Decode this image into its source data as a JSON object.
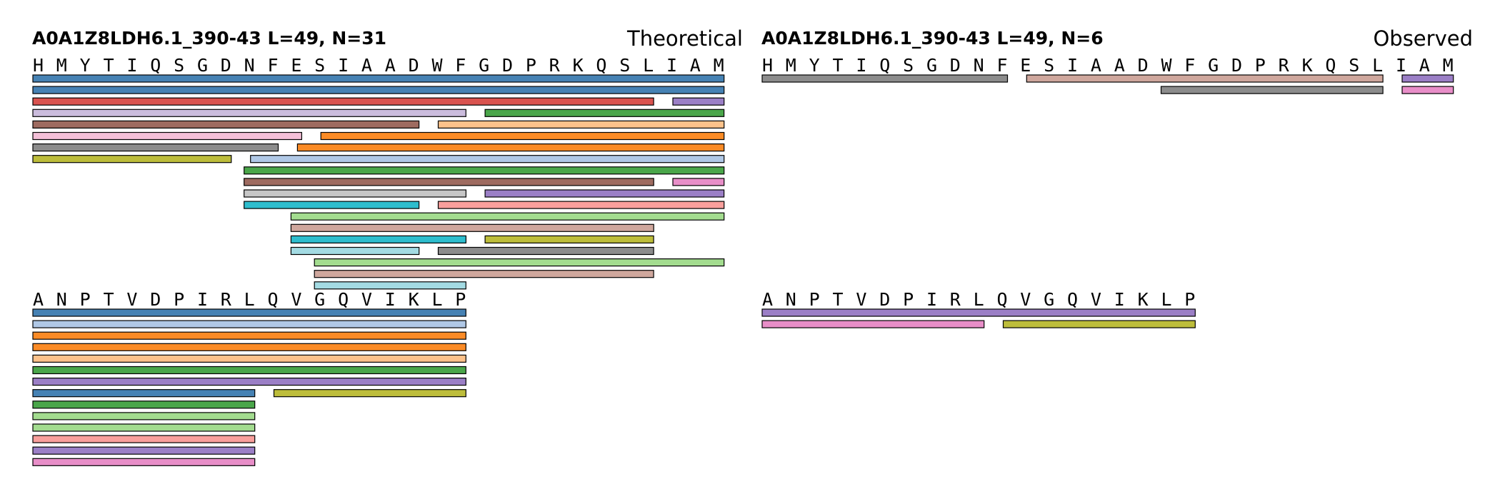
{
  "colors": {
    "blue": "#4682b4",
    "red": "#d9534f",
    "purple": "#9b7fc6",
    "lavender": "#cbbcdd",
    "green": "#4aa64a",
    "brown": "#9e6b60",
    "peach": "#fdc28b",
    "pink_light": "#f4c0d8",
    "orange": "#fb8b26",
    "gray": "#8c8c8c",
    "olive": "#bdbd3b",
    "light_blue": "#b0c8e6",
    "pink": "#e88ec8",
    "silver": "#c7c7c7",
    "cyan": "#2ebdcd",
    "salmon": "#f99f9c",
    "light_green": "#a3dc8f",
    "tan": "#cfa79d",
    "pale_cyan": "#a3dbe3"
  },
  "panels": [
    {
      "title": "A0A1Z8LDH6.1_390-43  L=49, N=31",
      "mode": "Theoretical",
      "blocks": [
        {
          "sequence": [
            "H",
            "M",
            "Y",
            "T",
            "I",
            "Q",
            "S",
            "G",
            "D",
            "N",
            "F",
            "E",
            "S",
            "I",
            "A",
            "A",
            "D",
            "W",
            "F",
            "G",
            "D",
            "P",
            "R",
            "K",
            "Q",
            "S",
            "L",
            "I",
            "A",
            "M"
          ],
          "peptides": [
            {
              "start": 0,
              "end": 29,
              "row": 0,
              "color": "blue"
            },
            {
              "start": 0,
              "end": 29,
              "row": 1,
              "color": "blue"
            },
            {
              "start": 0,
              "end": 26,
              "row": 2,
              "color": "red"
            },
            {
              "start": 27,
              "end": 29,
              "row": 2,
              "color": "purple"
            },
            {
              "start": 0,
              "end": 18,
              "row": 3,
              "color": "lavender"
            },
            {
              "start": 19,
              "end": 29,
              "row": 3,
              "color": "green"
            },
            {
              "start": 0,
              "end": 16,
              "row": 4,
              "color": "brown"
            },
            {
              "start": 17,
              "end": 29,
              "row": 4,
              "color": "peach"
            },
            {
              "start": 0,
              "end": 11,
              "row": 5,
              "color": "pink_light"
            },
            {
              "start": 12,
              "end": 29,
              "row": 5,
              "color": "orange"
            },
            {
              "start": 0,
              "end": 10,
              "row": 6,
              "color": "gray"
            },
            {
              "start": 11,
              "end": 29,
              "row": 6,
              "color": "orange"
            },
            {
              "start": 0,
              "end": 8,
              "row": 7,
              "color": "olive"
            },
            {
              "start": 9,
              "end": 29,
              "row": 7,
              "color": "light_blue"
            },
            {
              "start": 9,
              "end": 29,
              "row": 8,
              "color": "green"
            },
            {
              "start": 9,
              "end": 26,
              "row": 9,
              "color": "brown"
            },
            {
              "start": 27,
              "end": 29,
              "row": 9,
              "color": "pink"
            },
            {
              "start": 9,
              "end": 18,
              "row": 10,
              "color": "silver"
            },
            {
              "start": 19,
              "end": 29,
              "row": 10,
              "color": "purple"
            },
            {
              "start": 9,
              "end": 16,
              "row": 11,
              "color": "cyan"
            },
            {
              "start": 17,
              "end": 29,
              "row": 11,
              "color": "salmon"
            },
            {
              "start": 11,
              "end": 29,
              "row": 12,
              "color": "light_green"
            },
            {
              "start": 11,
              "end": 26,
              "row": 13,
              "color": "tan"
            },
            {
              "start": 11,
              "end": 18,
              "row": 14,
              "color": "cyan"
            },
            {
              "start": 19,
              "end": 26,
              "row": 14,
              "color": "olive"
            },
            {
              "start": 11,
              "end": 16,
              "row": 15,
              "color": "pale_cyan"
            },
            {
              "start": 17,
              "end": 26,
              "row": 15,
              "color": "gray"
            },
            {
              "start": 12,
              "end": 29,
              "row": 16,
              "color": "light_green"
            },
            {
              "start": 12,
              "end": 26,
              "row": 17,
              "color": "tan"
            },
            {
              "start": 12,
              "end": 18,
              "row": 18,
              "color": "pale_cyan"
            }
          ]
        },
        {
          "sequence": [
            "A",
            "N",
            "P",
            "T",
            "V",
            "D",
            "P",
            "I",
            "R",
            "L",
            "Q",
            "V",
            "G",
            "Q",
            "V",
            "I",
            "K",
            "L",
            "P"
          ],
          "peptides": [
            {
              "start": 0,
              "end": 18,
              "row": 0,
              "color": "blue"
            },
            {
              "start": 0,
              "end": 18,
              "row": 1,
              "color": "light_blue"
            },
            {
              "start": 0,
              "end": 18,
              "row": 2,
              "color": "orange"
            },
            {
              "start": 0,
              "end": 18,
              "row": 3,
              "color": "orange"
            },
            {
              "start": 0,
              "end": 18,
              "row": 4,
              "color": "peach"
            },
            {
              "start": 0,
              "end": 18,
              "row": 5,
              "color": "green"
            },
            {
              "start": 0,
              "end": 18,
              "row": 6,
              "color": "purple"
            },
            {
              "start": 0,
              "end": 9,
              "row": 7,
              "color": "blue"
            },
            {
              "start": 10,
              "end": 18,
              "row": 7,
              "color": "olive"
            },
            {
              "start": 0,
              "end": 9,
              "row": 8,
              "color": "green"
            },
            {
              "start": 0,
              "end": 9,
              "row": 9,
              "color": "light_green"
            },
            {
              "start": 0,
              "end": 9,
              "row": 10,
              "color": "light_green"
            },
            {
              "start": 0,
              "end": 9,
              "row": 11,
              "color": "salmon"
            },
            {
              "start": 0,
              "end": 9,
              "row": 12,
              "color": "purple"
            },
            {
              "start": 0,
              "end": 9,
              "row": 13,
              "color": "pink"
            }
          ]
        }
      ]
    },
    {
      "title": "A0A1Z8LDH6.1_390-43  L=49, N=6",
      "mode": "Observed",
      "blocks": [
        {
          "sequence": [
            "H",
            "M",
            "Y",
            "T",
            "I",
            "Q",
            "S",
            "G",
            "D",
            "N",
            "F",
            "E",
            "S",
            "I",
            "A",
            "A",
            "D",
            "W",
            "F",
            "G",
            "D",
            "P",
            "R",
            "K",
            "Q",
            "S",
            "L",
            "I",
            "A",
            "M"
          ],
          "peptides": [
            {
              "start": 0,
              "end": 10,
              "row": 0,
              "color": "gray"
            },
            {
              "start": 11,
              "end": 26,
              "row": 0,
              "color": "tan"
            },
            {
              "start": 27,
              "end": 29,
              "row": 0,
              "color": "purple"
            },
            {
              "start": 17,
              "end": 26,
              "row": 1,
              "color": "gray"
            },
            {
              "start": 27,
              "end": 29,
              "row": 1,
              "color": "pink"
            }
          ]
        },
        {
          "sequence": [
            "A",
            "N",
            "P",
            "T",
            "V",
            "D",
            "P",
            "I",
            "R",
            "L",
            "Q",
            "V",
            "G",
            "Q",
            "V",
            "I",
            "K",
            "L",
            "P"
          ],
          "peptides": [
            {
              "start": 0,
              "end": 18,
              "row": 0,
              "color": "purple"
            },
            {
              "start": 0,
              "end": 9,
              "row": 1,
              "color": "pink"
            },
            {
              "start": 10,
              "end": 18,
              "row": 1,
              "color": "olive"
            }
          ]
        }
      ]
    }
  ]
}
